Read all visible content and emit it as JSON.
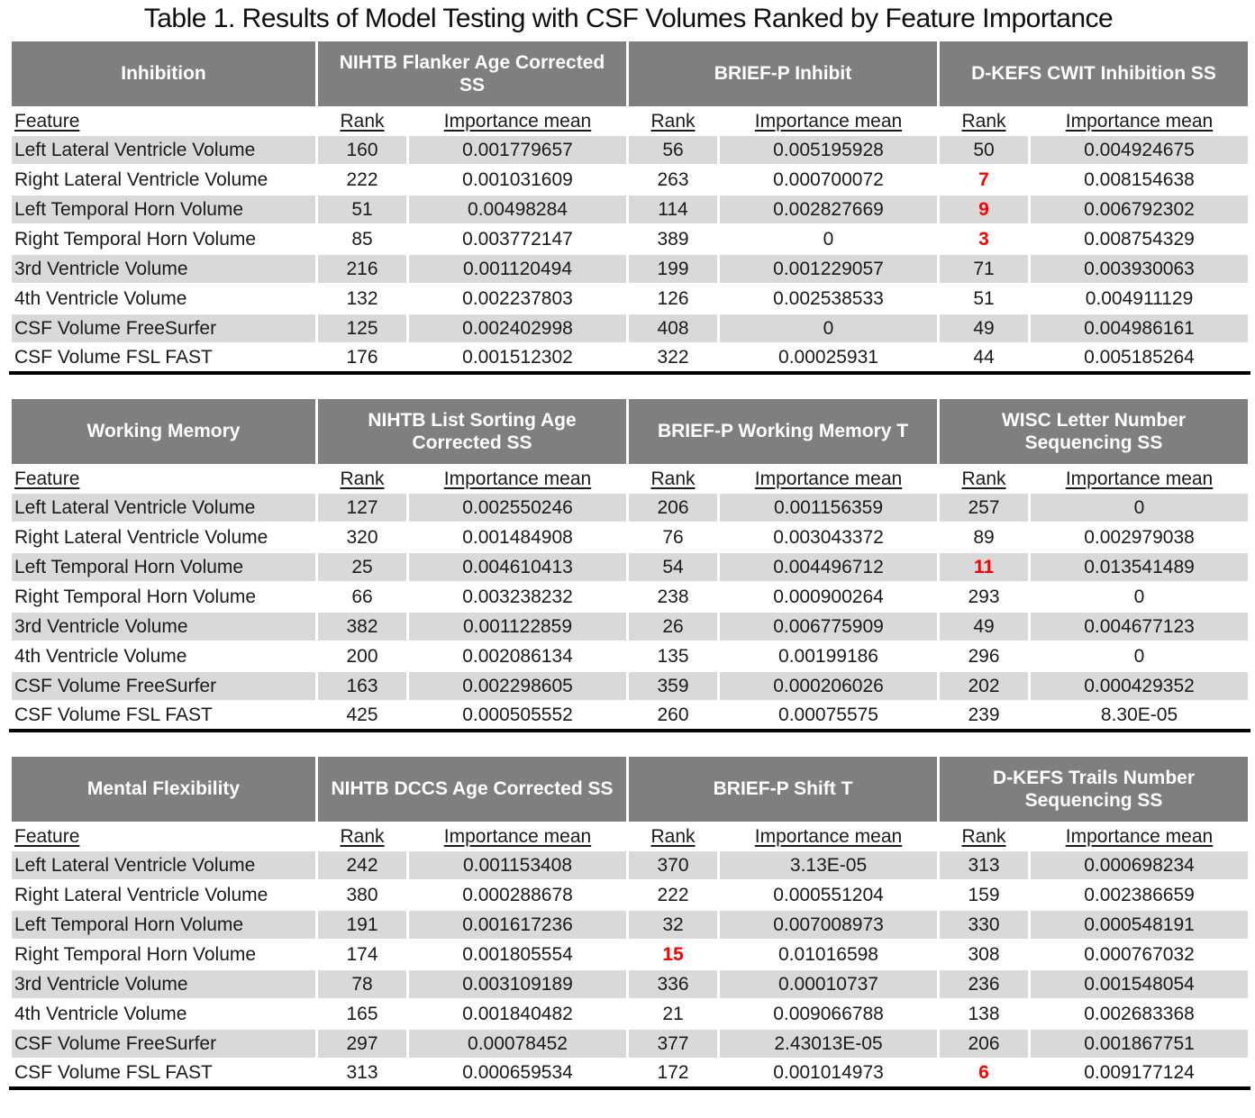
{
  "title": "Table 1. Results of Model Testing with CSF Volumes Ranked by Feature Importance",
  "colors": {
    "header_bg": "#7f7f7f",
    "header_text": "#ffffff",
    "stripe_bg": "#d9d9d9",
    "highlight_red": "#ff0000",
    "table_bottom_border": "#000000"
  },
  "labels": {
    "feature": "Feature",
    "rank": "Rank",
    "importance": "Importance mean"
  },
  "tables": [
    {
      "domain": "Inhibition",
      "measures": [
        "NIHTB Flanker Age Corrected SS",
        "BRIEF-P Inhibit",
        "D-KEFS CWIT Inhibition SS"
      ],
      "rows": [
        {
          "feature": "Left Lateral Ventricle Volume",
          "cells": [
            {
              "rank": "160",
              "imp": "0.001779657"
            },
            {
              "rank": "56",
              "imp": "0.005195928"
            },
            {
              "rank": "50",
              "imp": "0.004924675"
            }
          ]
        },
        {
          "feature": "Right Lateral Ventricle Volume",
          "cells": [
            {
              "rank": "222",
              "imp": "0.001031609"
            },
            {
              "rank": "263",
              "imp": "0.000700072"
            },
            {
              "rank": "7",
              "imp": "0.008154638",
              "red": true
            }
          ]
        },
        {
          "feature": "Left Temporal Horn Volume",
          "cells": [
            {
              "rank": "51",
              "imp": "0.00498284"
            },
            {
              "rank": "114",
              "imp": "0.002827669"
            },
            {
              "rank": "9",
              "imp": "0.006792302",
              "red": true
            }
          ]
        },
        {
          "feature": "Right Temporal Horn Volume",
          "cells": [
            {
              "rank": "85",
              "imp": "0.003772147"
            },
            {
              "rank": "389",
              "imp": "0"
            },
            {
              "rank": "3",
              "imp": "0.008754329",
              "red": true
            }
          ]
        },
        {
          "feature": "3rd Ventricle Volume",
          "cells": [
            {
              "rank": "216",
              "imp": "0.001120494"
            },
            {
              "rank": "199",
              "imp": "0.001229057"
            },
            {
              "rank": "71",
              "imp": "0.003930063"
            }
          ]
        },
        {
          "feature": "4th Ventricle Volume",
          "cells": [
            {
              "rank": "132",
              "imp": "0.002237803"
            },
            {
              "rank": "126",
              "imp": "0.002538533"
            },
            {
              "rank": "51",
              "imp": "0.004911129"
            }
          ]
        },
        {
          "feature": "CSF Volume FreeSurfer",
          "cells": [
            {
              "rank": "125",
              "imp": "0.002402998"
            },
            {
              "rank": "408",
              "imp": "0"
            },
            {
              "rank": "49",
              "imp": "0.004986161"
            }
          ]
        },
        {
          "feature": "CSF Volume FSL FAST",
          "cells": [
            {
              "rank": "176",
              "imp": "0.001512302"
            },
            {
              "rank": "322",
              "imp": "0.00025931"
            },
            {
              "rank": "44",
              "imp": "0.005185264"
            }
          ]
        }
      ]
    },
    {
      "domain": "Working Memory",
      "measures": [
        "NIHTB List Sorting Age Corrected SS",
        "BRIEF-P Working Memory T",
        "WISC Letter Number Sequencing SS"
      ],
      "rows": [
        {
          "feature": "Left Lateral Ventricle Volume",
          "cells": [
            {
              "rank": "127",
              "imp": "0.002550246"
            },
            {
              "rank": "206",
              "imp": "0.001156359"
            },
            {
              "rank": "257",
              "imp": "0"
            }
          ]
        },
        {
          "feature": "Right Lateral Ventricle Volume",
          "cells": [
            {
              "rank": "320",
              "imp": "0.001484908"
            },
            {
              "rank": "76",
              "imp": "0.003043372"
            },
            {
              "rank": "89",
              "imp": "0.002979038"
            }
          ]
        },
        {
          "feature": "Left Temporal Horn Volume",
          "cells": [
            {
              "rank": "25",
              "imp": "0.004610413"
            },
            {
              "rank": "54",
              "imp": "0.004496712"
            },
            {
              "rank": "11",
              "imp": "0.013541489",
              "red": true
            }
          ]
        },
        {
          "feature": "Right Temporal Horn Volume",
          "cells": [
            {
              "rank": "66",
              "imp": "0.003238232"
            },
            {
              "rank": "238",
              "imp": "0.000900264"
            },
            {
              "rank": "293",
              "imp": "0"
            }
          ]
        },
        {
          "feature": "3rd Ventricle Volume",
          "cells": [
            {
              "rank": "382",
              "imp": "0.001122859"
            },
            {
              "rank": "26",
              "imp": "0.006775909"
            },
            {
              "rank": "49",
              "imp": "0.004677123"
            }
          ]
        },
        {
          "feature": "4th Ventricle Volume",
          "cells": [
            {
              "rank": "200",
              "imp": "0.002086134"
            },
            {
              "rank": "135",
              "imp": "0.00199186"
            },
            {
              "rank": "296",
              "imp": "0"
            }
          ]
        },
        {
          "feature": "CSF Volume FreeSurfer",
          "cells": [
            {
              "rank": "163",
              "imp": "0.002298605"
            },
            {
              "rank": "359",
              "imp": "0.000206026"
            },
            {
              "rank": "202",
              "imp": "0.000429352"
            }
          ]
        },
        {
          "feature": "CSF Volume FSL FAST",
          "cells": [
            {
              "rank": "425",
              "imp": "0.000505552"
            },
            {
              "rank": "260",
              "imp": "0.00075575"
            },
            {
              "rank": "239",
              "imp": "8.30E-05"
            }
          ]
        }
      ]
    },
    {
      "domain": "Mental Flexibility",
      "measures": [
        "NIHTB DCCS Age Corrected SS",
        "BRIEF-P Shift T",
        "D-KEFS Trails Number Sequencing SS"
      ],
      "rows": [
        {
          "feature": "Left Lateral Ventricle Volume",
          "cells": [
            {
              "rank": "242",
              "imp": "0.001153408"
            },
            {
              "rank": "370",
              "imp": "3.13E-05"
            },
            {
              "rank": "313",
              "imp": "0.000698234"
            }
          ]
        },
        {
          "feature": "Right Lateral Ventricle Volume",
          "cells": [
            {
              "rank": "380",
              "imp": "0.000288678"
            },
            {
              "rank": "222",
              "imp": "0.000551204"
            },
            {
              "rank": "159",
              "imp": "0.002386659"
            }
          ]
        },
        {
          "feature": "Left Temporal Horn Volume",
          "cells": [
            {
              "rank": "191",
              "imp": "0.001617236"
            },
            {
              "rank": "32",
              "imp": "0.007008973"
            },
            {
              "rank": "330",
              "imp": "0.000548191"
            }
          ]
        },
        {
          "feature": "Right Temporal Horn Volume",
          "cells": [
            {
              "rank": "174",
              "imp": "0.001805554"
            },
            {
              "rank": "15",
              "imp": "0.01016598",
              "red": true
            },
            {
              "rank": "308",
              "imp": "0.000767032"
            }
          ]
        },
        {
          "feature": "3rd Ventricle Volume",
          "cells": [
            {
              "rank": "78",
              "imp": "0.003109189"
            },
            {
              "rank": "336",
              "imp": "0.00010737"
            },
            {
              "rank": "236",
              "imp": "0.001548054"
            }
          ]
        },
        {
          "feature": "4th Ventricle Volume",
          "cells": [
            {
              "rank": "165",
              "imp": "0.001840482"
            },
            {
              "rank": "21",
              "imp": "0.009066788"
            },
            {
              "rank": "138",
              "imp": "0.002683368"
            }
          ]
        },
        {
          "feature": "CSF Volume FreeSurfer",
          "cells": [
            {
              "rank": "297",
              "imp": "0.00078452"
            },
            {
              "rank": "377",
              "imp": "2.43013E-05"
            },
            {
              "rank": "206",
              "imp": "0.001867751"
            }
          ]
        },
        {
          "feature": "CSF Volume FSL FAST",
          "cells": [
            {
              "rank": "313",
              "imp": "0.000659534"
            },
            {
              "rank": "172",
              "imp": "0.001014973"
            },
            {
              "rank": "6",
              "imp": "0.009177124",
              "red": true
            }
          ]
        }
      ]
    }
  ]
}
